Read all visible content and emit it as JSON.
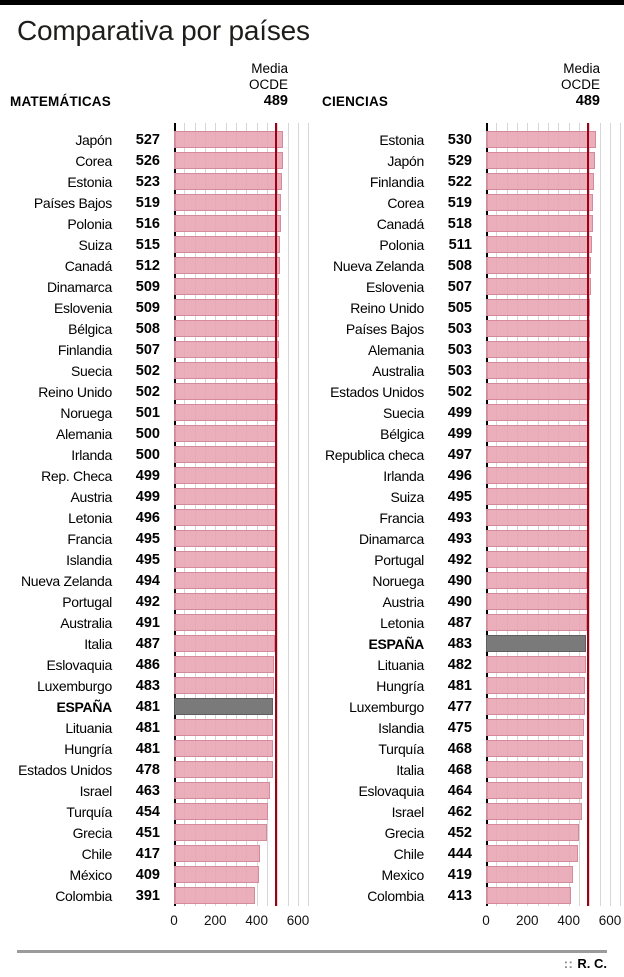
{
  "page": {
    "title": "Comparativa por países",
    "credit_prefix": "::",
    "credit_name": "R. C."
  },
  "colors": {
    "bar_fill": "rgba(233,166,181,0.9)",
    "bar_border": "#d58a9c",
    "highlight_fill": "#7a7a7a",
    "highlight_border": "#5e5e5e",
    "media_line": "#a00014",
    "grid": "#d6d6d6",
    "axis": "#000000"
  },
  "media_label": {
    "line1": "Media",
    "line2": "OCDE",
    "value": "489"
  },
  "chart_data": [
    {
      "type": "bar",
      "orientation": "horizontal",
      "title": "MATEMÁTICAS",
      "xlim": [
        0,
        600
      ],
      "x_ticks": [
        0,
        200,
        400,
        600
      ],
      "grid_step": 50,
      "reference_line": {
        "label": "Media OCDE",
        "value": 489
      },
      "highlight_country": "ESPAÑA",
      "rows": [
        {
          "country": "Japón",
          "score": 527
        },
        {
          "country": "Corea",
          "score": 526
        },
        {
          "country": "Estonia",
          "score": 523
        },
        {
          "country": "Países Bajos",
          "score": 519
        },
        {
          "country": "Polonia",
          "score": 516
        },
        {
          "country": "Suiza",
          "score": 515
        },
        {
          "country": "Canadá",
          "score": 512
        },
        {
          "country": "Dinamarca",
          "score": 509
        },
        {
          "country": "Eslovenia",
          "score": 509
        },
        {
          "country": "Bélgica",
          "score": 508
        },
        {
          "country": "Finlandia",
          "score": 507
        },
        {
          "country": "Suecia",
          "score": 502
        },
        {
          "country": "Reino Unido",
          "score": 502
        },
        {
          "country": "Noruega",
          "score": 501
        },
        {
          "country": "Alemania",
          "score": 500
        },
        {
          "country": "Irlanda",
          "score": 500
        },
        {
          "country": "Rep. Checa",
          "score": 499
        },
        {
          "country": "Austria",
          "score": 499
        },
        {
          "country": "Letonia",
          "score": 496
        },
        {
          "country": "Francia",
          "score": 495
        },
        {
          "country": "Islandia",
          "score": 495
        },
        {
          "country": "Nueva Zelanda",
          "score": 494
        },
        {
          "country": "Portugal",
          "score": 492
        },
        {
          "country": "Australia",
          "score": 491
        },
        {
          "country": "Italia",
          "score": 487
        },
        {
          "country": "Eslovaquia",
          "score": 486
        },
        {
          "country": "Luxemburgo",
          "score": 483
        },
        {
          "country": "ESPAÑA",
          "score": 481,
          "highlight": true
        },
        {
          "country": "Lituania",
          "score": 481
        },
        {
          "country": "Hungría",
          "score": 481
        },
        {
          "country": "Estados Unidos",
          "score": 478
        },
        {
          "country": "Israel",
          "score": 463
        },
        {
          "country": "Turquía",
          "score": 454
        },
        {
          "country": "Grecia",
          "score": 451
        },
        {
          "country": "Chile",
          "score": 417
        },
        {
          "country": "México",
          "score": 409
        },
        {
          "country": "Colombia",
          "score": 391
        }
      ]
    },
    {
      "type": "bar",
      "orientation": "horizontal",
      "title": "CIENCIAS",
      "xlim": [
        0,
        600
      ],
      "x_ticks": [
        0,
        200,
        400,
        600
      ],
      "grid_step": 50,
      "reference_line": {
        "label": "Media OCDE",
        "value": 489
      },
      "highlight_country": "ESPAÑA",
      "rows": [
        {
          "country": "Estonia",
          "score": 530
        },
        {
          "country": "Japón",
          "score": 529
        },
        {
          "country": "Finlandia",
          "score": 522
        },
        {
          "country": "Corea",
          "score": 519
        },
        {
          "country": "Canadá",
          "score": 518
        },
        {
          "country": "Polonia",
          "score": 511
        },
        {
          "country": "Nueva Zelanda",
          "score": 508
        },
        {
          "country": "Eslovenia",
          "score": 507
        },
        {
          "country": "Reino Unido",
          "score": 505
        },
        {
          "country": "Países Bajos",
          "score": 503
        },
        {
          "country": "Alemania",
          "score": 503
        },
        {
          "country": "Australia",
          "score": 503
        },
        {
          "country": "Estados Unidos",
          "score": 502
        },
        {
          "country": "Suecia",
          "score": 499
        },
        {
          "country": "Bélgica",
          "score": 499
        },
        {
          "country": "Republica checa",
          "score": 497
        },
        {
          "country": "Irlanda",
          "score": 496
        },
        {
          "country": "Suiza",
          "score": 495
        },
        {
          "country": "Francia",
          "score": 493
        },
        {
          "country": "Dinamarca",
          "score": 493
        },
        {
          "country": "Portugal",
          "score": 492
        },
        {
          "country": "Noruega",
          "score": 490
        },
        {
          "country": "Austria",
          "score": 490
        },
        {
          "country": "Letonia",
          "score": 487
        },
        {
          "country": "ESPAÑA",
          "score": 483,
          "highlight": true
        },
        {
          "country": "Lituania",
          "score": 482
        },
        {
          "country": "Hungría",
          "score": 481
        },
        {
          "country": "Luxemburgo",
          "score": 477
        },
        {
          "country": "Islandia",
          "score": 475
        },
        {
          "country": "Turquía",
          "score": 468
        },
        {
          "country": "Italia",
          "score": 468
        },
        {
          "country": "Eslovaquia",
          "score": 464
        },
        {
          "country": "Israel",
          "score": 462
        },
        {
          "country": "Grecia",
          "score": 452
        },
        {
          "country": "Chile",
          "score": 444
        },
        {
          "country": "Mexico",
          "score": 419
        },
        {
          "country": "Colombia",
          "score": 413
        }
      ]
    }
  ]
}
